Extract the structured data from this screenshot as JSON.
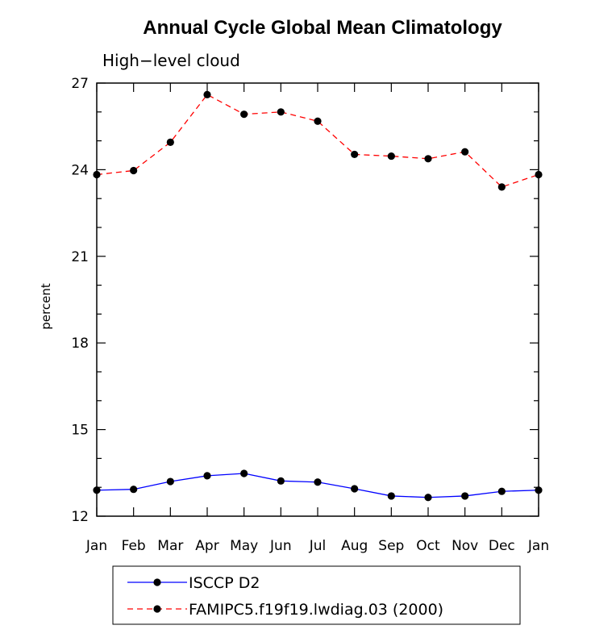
{
  "chart_data": {
    "type": "line",
    "title": "Annual Cycle Global Mean Climatology",
    "subtitle": "High−level cloud",
    "xlabel": "",
    "ylabel": "percent",
    "categories": [
      "Jan",
      "Feb",
      "Mar",
      "Apr",
      "May",
      "Jun",
      "Jul",
      "Aug",
      "Sep",
      "Oct",
      "Nov",
      "Dec",
      "Jan"
    ],
    "ylim": [
      12,
      27
    ],
    "yticks": [
      12,
      15,
      18,
      21,
      24,
      27
    ],
    "series": [
      {
        "name": "ISCCP D2",
        "color": "#0000ff",
        "dash": "solid",
        "values": [
          12.9,
          12.93,
          13.2,
          13.4,
          13.48,
          13.22,
          13.18,
          12.95,
          12.7,
          12.65,
          12.7,
          12.86,
          12.9
        ]
      },
      {
        "name": "FAMIPC5.f19f19.lwdiag.03 (2000)",
        "color": "#ff0000",
        "dash": "dashed",
        "values": [
          23.83,
          23.97,
          24.95,
          26.6,
          25.92,
          26.0,
          25.68,
          24.53,
          24.47,
          24.38,
          24.62,
          23.4,
          23.83
        ]
      }
    ]
  }
}
